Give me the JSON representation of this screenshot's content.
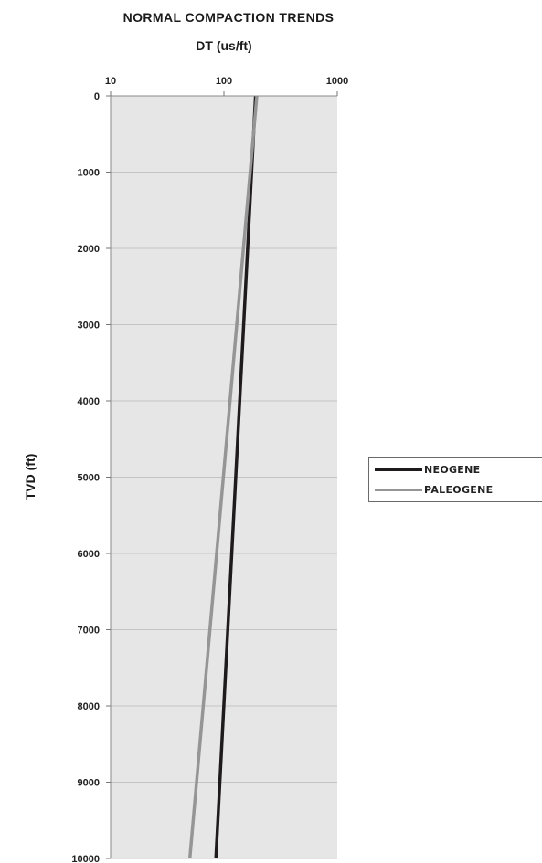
{
  "chart_data": {
    "type": "line",
    "title": "NORMAL COMPACTION TRENDS",
    "xlabel": "DT (us/ft)",
    "ylabel": "TVD (ft)",
    "x_scale": "log",
    "x_axis_position": "top",
    "y_inverted": true,
    "xlim": [
      10,
      1000
    ],
    "ylim": [
      0,
      10000
    ],
    "x_ticks": [
      "10",
      "100",
      "1000"
    ],
    "y_ticks": [
      "0",
      "1000",
      "2000",
      "3000",
      "4000",
      "5000",
      "6000",
      "7000",
      "8000",
      "9000",
      "10000"
    ],
    "grid": "horizontal",
    "legend_position": "right",
    "plot_background": "#e6e6e6",
    "series": [
      {
        "name": "NEOGENE",
        "color": "#1f1a1c",
        "points": [
          {
            "depth": 0,
            "dt": 190
          },
          {
            "depth": 10000,
            "dt": 85
          }
        ]
      },
      {
        "name": "PALEOGENE",
        "color": "#959595",
        "points": [
          {
            "depth": 0,
            "dt": 195
          },
          {
            "depth": 10000,
            "dt": 50
          }
        ]
      }
    ]
  }
}
